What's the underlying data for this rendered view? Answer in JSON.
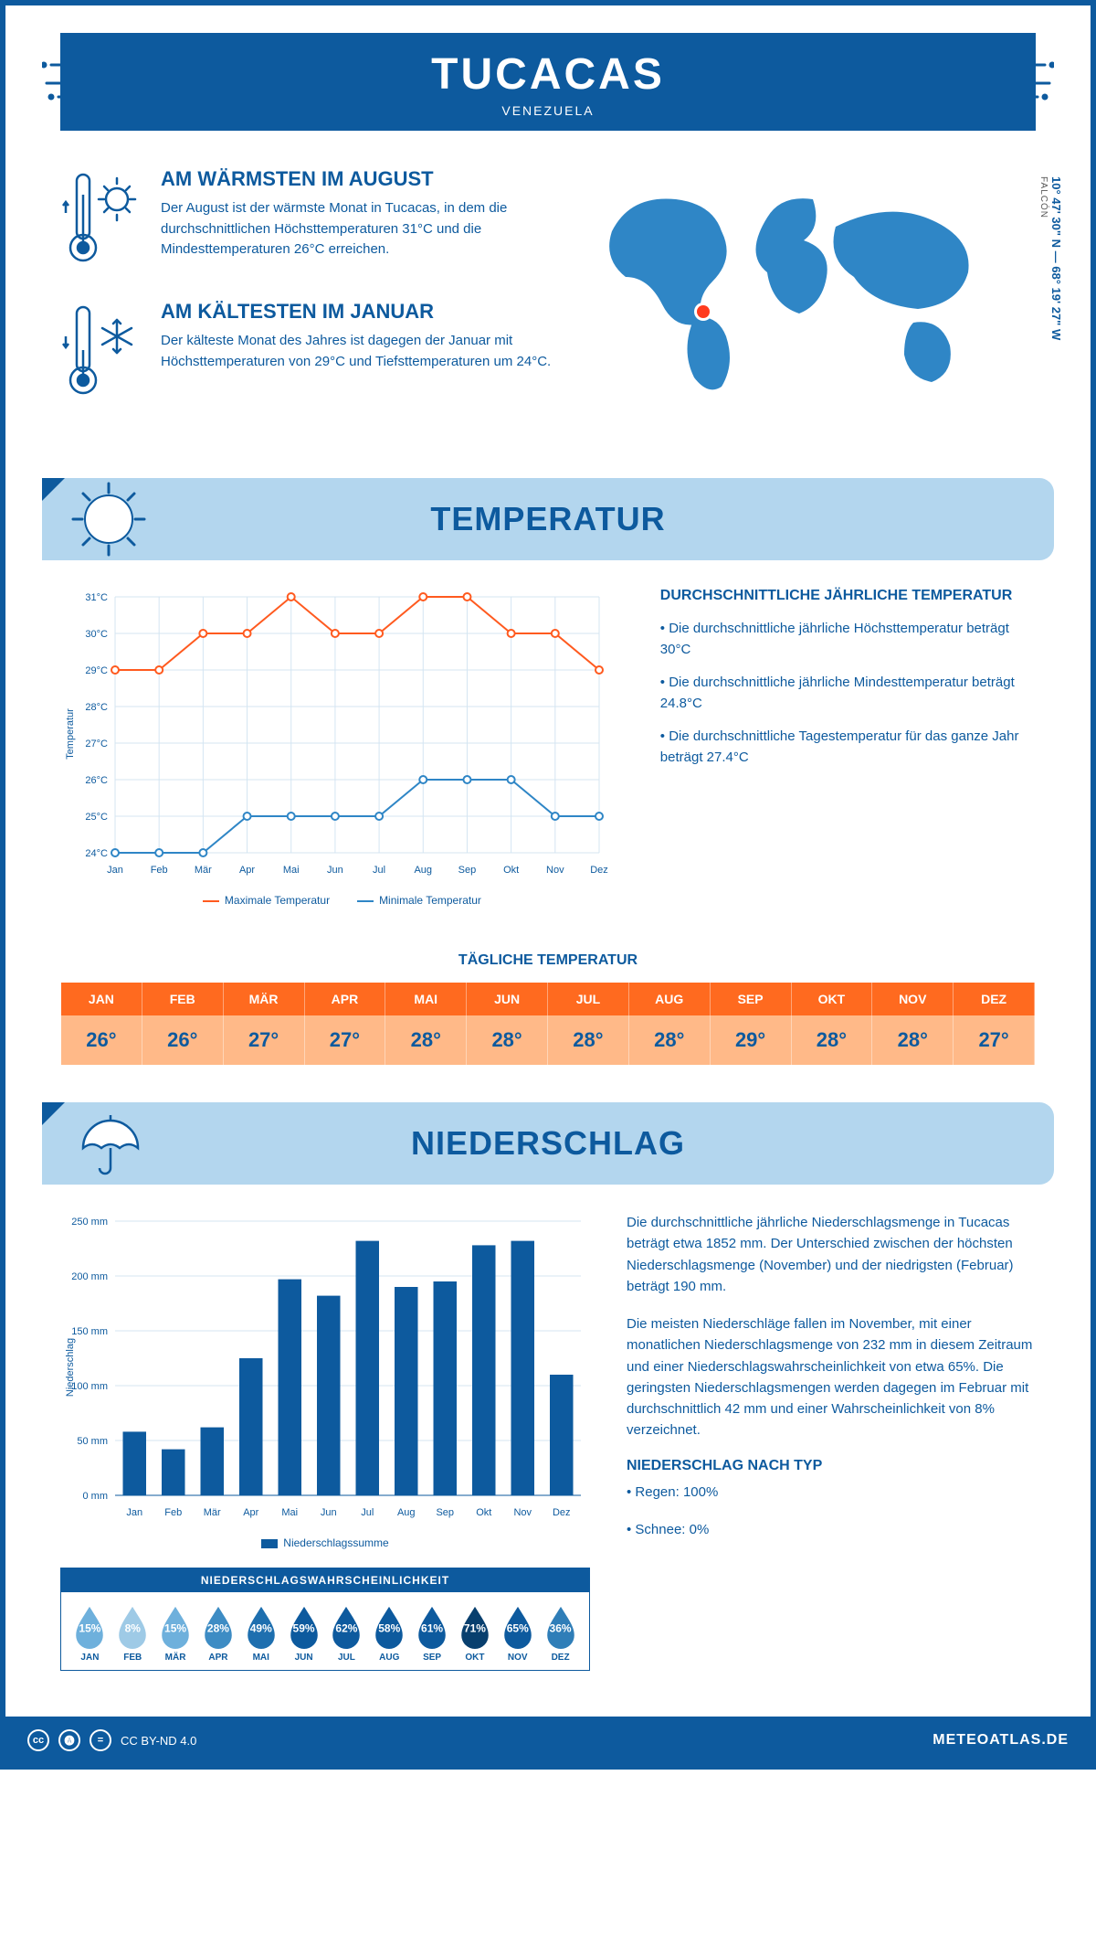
{
  "colors": {
    "primary": "#0d5a9e",
    "lightblue": "#b3d6ee",
    "orange": "#ff5a1f",
    "orange_light": "#ffb988",
    "max_line": "#ff5a1f",
    "min_line": "#2f86c6",
    "bar": "#0d5a9e",
    "grid": "#d4e5f2",
    "marker_red": "#ff3b1f"
  },
  "header": {
    "title": "TUCACAS",
    "subtitle": "VENEZUELA"
  },
  "location": {
    "coords": "10° 47' 30\" N — 68° 19' 27\" W",
    "region": "FALCÓN"
  },
  "warmest": {
    "title": "AM WÄRMSTEN IM AUGUST",
    "text": "Der August ist der wärmste Monat in Tucacas, in dem die durchschnittlichen Höchsttemperaturen 31°C und die Mindesttemperaturen 26°C erreichen."
  },
  "coldest": {
    "title": "AM KÄLTESTEN IM JANUAR",
    "text": "Der kälteste Monat des Jahres ist dagegen der Januar mit Höchsttemperaturen von 29°C und Tiefsttemperaturen um 24°C."
  },
  "temperature": {
    "section_title": "TEMPERATUR",
    "side_title": "DURCHSCHNITTLICHE JÄHRLICHE TEMPERATUR",
    "bullets": [
      "• Die durchschnittliche jährliche Höchsttemperatur beträgt 30°C",
      "• Die durchschnittliche jährliche Mindesttemperatur beträgt 24.8°C",
      "• Die durchschnittliche Tagestemperatur für das ganze Jahr beträgt 27.4°C"
    ],
    "chart": {
      "type": "line",
      "months": [
        "Jan",
        "Feb",
        "Mär",
        "Apr",
        "Mai",
        "Jun",
        "Jul",
        "Aug",
        "Sep",
        "Okt",
        "Nov",
        "Dez"
      ],
      "y_ticks": [
        24,
        25,
        26,
        27,
        28,
        29,
        30,
        31
      ],
      "y_tick_labels": [
        "24°C",
        "25°C",
        "26°C",
        "27°C",
        "28°C",
        "29°C",
        "30°C",
        "31°C"
      ],
      "ylim": [
        24,
        31
      ],
      "y_axis_label": "Temperatur",
      "max_series": [
        29,
        29,
        30,
        30,
        31,
        30,
        30,
        31,
        31,
        30,
        30,
        29
      ],
      "min_series": [
        24,
        24,
        24,
        25,
        25,
        25,
        25,
        26,
        26,
        26,
        25,
        25
      ],
      "legend_max": "Maximale Temperatur",
      "legend_min": "Minimale Temperatur",
      "line_width": 2,
      "marker": "circle-open"
    },
    "daily": {
      "title": "TÄGLICHE TEMPERATUR",
      "months": [
        "JAN",
        "FEB",
        "MÄR",
        "APR",
        "MAI",
        "JUN",
        "JUL",
        "AUG",
        "SEP",
        "OKT",
        "NOV",
        "DEZ"
      ],
      "values": [
        "26°",
        "26°",
        "27°",
        "27°",
        "28°",
        "28°",
        "28°",
        "28°",
        "29°",
        "28°",
        "28°",
        "27°"
      ]
    }
  },
  "precip": {
    "section_title": "NIEDERSCHLAG",
    "text1": "Die durchschnittliche jährliche Niederschlagsmenge in Tucacas beträgt etwa 1852 mm. Der Unterschied zwischen der höchsten Niederschlagsmenge (November) und der niedrigsten (Februar) beträgt 190 mm.",
    "text2": "Die meisten Niederschläge fallen im November, mit einer monatlichen Niederschlagsmenge von 232 mm in diesem Zeitraum und einer Niederschlagswahrscheinlichkeit von etwa 65%. Die geringsten Niederschlagsmengen werden dagegen im Februar mit durchschnittlich 42 mm und einer Wahrscheinlichkeit von 8% verzeichnet.",
    "type_title": "NIEDERSCHLAG NACH TYP",
    "types": [
      "• Regen: 100%",
      "• Schnee: 0%"
    ],
    "chart": {
      "type": "bar",
      "months": [
        "Jan",
        "Feb",
        "Mär",
        "Apr",
        "Mai",
        "Jun",
        "Jul",
        "Aug",
        "Sep",
        "Okt",
        "Nov",
        "Dez"
      ],
      "values": [
        58,
        42,
        62,
        125,
        197,
        182,
        232,
        190,
        195,
        228,
        232,
        110
      ],
      "y_ticks": [
        0,
        50,
        100,
        150,
        200,
        250
      ],
      "y_tick_labels": [
        "0 mm",
        "50 mm",
        "100 mm",
        "150 mm",
        "200 mm",
        "250 mm"
      ],
      "ylim": [
        0,
        250
      ],
      "y_axis_label": "Niederschlag",
      "legend": "Niederschlagssumme",
      "bar_width": 0.6
    },
    "probability": {
      "title": "NIEDERSCHLAGSWAHRSCHEINLICHKEIT",
      "months": [
        "JAN",
        "FEB",
        "MÄR",
        "APR",
        "MAI",
        "JUN",
        "JUL",
        "AUG",
        "SEP",
        "OKT",
        "NOV",
        "DEZ"
      ],
      "values": [
        "15%",
        "8%",
        "15%",
        "28%",
        "49%",
        "59%",
        "62%",
        "58%",
        "61%",
        "71%",
        "65%",
        "36%"
      ],
      "colors": [
        "#6eb0dc",
        "#9ecae6",
        "#6eb0dc",
        "#3d8cc4",
        "#1e6faf",
        "#0d5a9e",
        "#0d5a9e",
        "#0d5a9e",
        "#0d5a9e",
        "#083f6e",
        "#0d5a9e",
        "#2f7eb8"
      ]
    }
  },
  "footer": {
    "license": "CC BY-ND 4.0",
    "site": "METEOATLAS.DE"
  }
}
